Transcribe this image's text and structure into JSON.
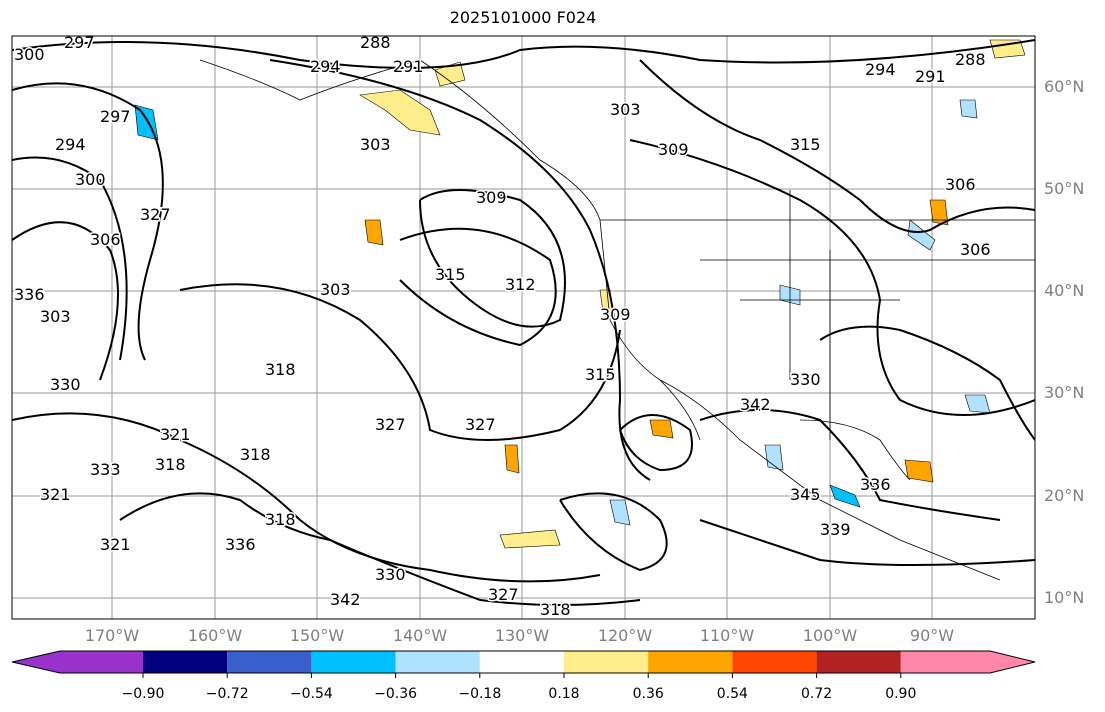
{
  "title": "2025101000 F024",
  "axes": {
    "lat_labels": [
      "60°N",
      "50°N",
      "40°N",
      "30°N",
      "20°N",
      "10°N"
    ],
    "lon_labels": [
      "170°W",
      "160°W",
      "150°W",
      "140°W",
      "130°W",
      "120°W",
      "110°W",
      "100°W",
      "90°W"
    ]
  },
  "colorbar": {
    "ticks": [
      "−0.90",
      "−0.72",
      "−0.54",
      "−0.36",
      "−0.18",
      "0.18",
      "0.36",
      "0.54",
      "0.72",
      "0.90"
    ],
    "colors": [
      "#9932cc",
      "#000080",
      "#3a5fcd",
      "#00bfff",
      "#b0e2ff",
      "#ffffff",
      "#ffec8b",
      "#ffa500",
      "#ff4500",
      "#b22222",
      "#ff88aa"
    ]
  },
  "contour_labels": [
    "300",
    "297",
    "288",
    "294",
    "291",
    "294",
    "291",
    "288",
    "294",
    "297",
    "300",
    "303",
    "303",
    "309",
    "315",
    "309",
    "306",
    "306",
    "327",
    "315",
    "303",
    "312",
    "303",
    "330",
    "336",
    "333",
    "321",
    "318",
    "318",
    "327",
    "315",
    "318",
    "327",
    "318",
    "321",
    "321",
    "336",
    "342",
    "330",
    "327",
    "318",
    "342",
    "345",
    "336",
    "339",
    "309",
    "330",
    "306"
  ]
}
